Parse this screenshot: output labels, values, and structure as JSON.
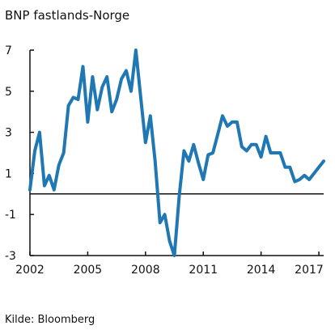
{
  "chart_data": {
    "type": "line",
    "title": "BNP fastlands-Norge",
    "source": "Kilde: Bloomberg",
    "xlabel": "",
    "ylabel": "",
    "xlim": [
      2002.0,
      2017.25
    ],
    "ylim": [
      -3,
      7
    ],
    "y_ticks": [
      7,
      5,
      3,
      1,
      -1,
      -3
    ],
    "y_tick_labels": [
      "7",
      "5",
      "3",
      "1",
      "-1",
      "-3"
    ],
    "x_ticks": [
      2002,
      2005,
      2008,
      2011,
      2014,
      2017
    ],
    "x_tick_labels": [
      "2002",
      "2005",
      "2008",
      "2011",
      "2014",
      "2017"
    ],
    "zero_line": true,
    "grid": false,
    "line_color": "#1F77B4",
    "series": [
      {
        "x": [
          2002.0,
          2002.25,
          2002.5,
          2002.75,
          2003.0,
          2003.25,
          2003.5,
          2003.75,
          2004.0,
          2004.25,
          2004.5,
          2004.75,
          2005.0,
          2005.25,
          2005.5,
          2005.75,
          2006.0,
          2006.25,
          2006.5,
          2006.75,
          2007.0,
          2007.25,
          2007.5,
          2007.75,
          2008.0,
          2008.25,
          2008.5,
          2008.75,
          2009.0,
          2009.25,
          2009.5,
          2009.75,
          2010.0,
          2010.25,
          2010.5,
          2010.75,
          2011.0,
          2011.25,
          2011.5,
          2011.75,
          2012.0,
          2012.25,
          2012.5,
          2012.75,
          2013.0,
          2013.25,
          2013.5,
          2013.75,
          2014.0,
          2014.25,
          2014.5,
          2014.75,
          2015.0,
          2015.25,
          2015.5,
          2015.75,
          2016.0,
          2016.25,
          2016.5,
          2016.75,
          2017.0,
          2017.25
        ],
        "values": [
          0.2,
          2.1,
          3.0,
          0.4,
          0.9,
          0.2,
          1.4,
          2.0,
          4.3,
          4.7,
          4.6,
          6.2,
          3.5,
          5.7,
          4.1,
          5.2,
          5.7,
          4.0,
          4.6,
          5.6,
          6.0,
          5.0,
          7.0,
          4.7,
          2.5,
          3.8,
          1.6,
          -1.4,
          -1.0,
          -2.3,
          -3.0,
          -0.1,
          2.1,
          1.6,
          2.4,
          1.5,
          0.7,
          1.9,
          2.0,
          2.9,
          3.8,
          3.3,
          3.5,
          3.5,
          2.3,
          2.1,
          2.4,
          2.4,
          1.8,
          2.8,
          2.0,
          2.0,
          2.0,
          1.3,
          1.3,
          0.6,
          0.7,
          0.9,
          0.7,
          1.0,
          1.3,
          1.6
        ]
      }
    ]
  }
}
